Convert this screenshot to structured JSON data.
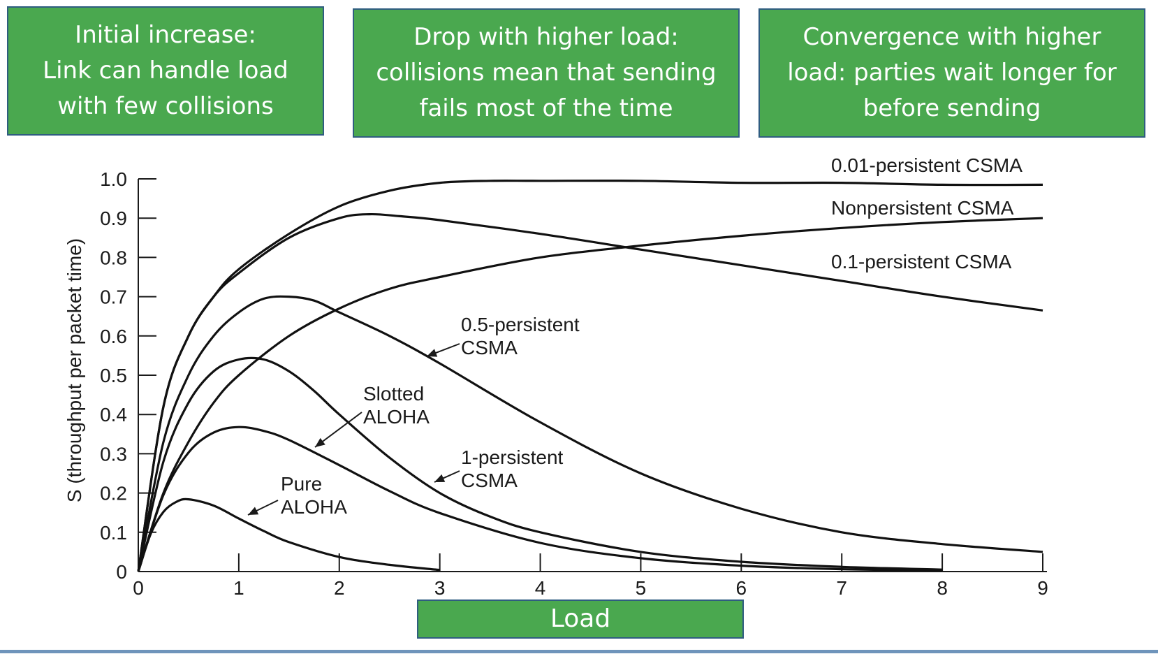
{
  "callouts": [
    {
      "lines": [
        "Initial increase:",
        "Link can handle load",
        "with few collisions"
      ]
    },
    {
      "lines": [
        "Drop with higher load:",
        "collisions mean that sending",
        "fails most of the time"
      ]
    },
    {
      "lines": [
        "Convergence with higher",
        "load: parties wait longer for",
        "before sending"
      ]
    }
  ],
  "colors": {
    "callout_bg": "#4aa84f",
    "callout_border": "#2f5d80",
    "curve": "#111111",
    "rule": "#6f94bb"
  },
  "chart_data": {
    "type": "line",
    "title": "",
    "xlabel": "Load",
    "ylabel": "S (throughput per packet time)",
    "xlim": [
      0,
      9
    ],
    "ylim": [
      0,
      1.0
    ],
    "x_ticks": [
      "0",
      "1",
      "2",
      "3",
      "4",
      "5",
      "6",
      "7",
      "8",
      "9"
    ],
    "y_ticks": [
      "0",
      "0.1",
      "0.2",
      "0.3",
      "0.4",
      "0.5",
      "0.6",
      "0.7",
      "0.8",
      "0.9",
      "1.0"
    ],
    "grid": false,
    "series": [
      {
        "name": "0.01-persistent CSMA",
        "label_lines": [
          "0.01-persistent CSMA"
        ],
        "x": [
          0,
          0.25,
          0.5,
          0.75,
          1,
          1.5,
          2,
          2.5,
          3,
          3.5,
          4,
          5,
          6,
          7,
          8,
          9
        ],
        "y": [
          0,
          0.42,
          0.6,
          0.7,
          0.77,
          0.86,
          0.93,
          0.97,
          0.99,
          0.995,
          0.995,
          0.995,
          0.99,
          0.99,
          0.985,
          0.985
        ]
      },
      {
        "name": "Nonpersistent CSMA",
        "label_lines": [
          "Nonpersistent CSMA"
        ],
        "x": [
          0,
          0.25,
          0.5,
          0.75,
          1,
          1.5,
          2,
          2.5,
          3,
          4,
          5,
          6,
          7,
          8,
          9
        ],
        "y": [
          0,
          0.2,
          0.33,
          0.43,
          0.5,
          0.6,
          0.67,
          0.72,
          0.75,
          0.8,
          0.83,
          0.855,
          0.875,
          0.89,
          0.9
        ]
      },
      {
        "name": "0.1-persistent CSMA",
        "label_lines": [
          "0.1-persistent CSMA"
        ],
        "x": [
          0,
          0.25,
          0.5,
          0.75,
          1,
          1.5,
          2,
          2.3,
          2.6,
          3,
          4,
          5,
          6,
          7,
          8,
          9
        ],
        "y": [
          0,
          0.42,
          0.6,
          0.7,
          0.76,
          0.85,
          0.9,
          0.91,
          0.905,
          0.895,
          0.86,
          0.82,
          0.78,
          0.74,
          0.7,
          0.665
        ]
      },
      {
        "name": "0.5-persistent CSMA",
        "label_lines": [
          "0.5-persistent",
          "CSMA"
        ],
        "x": [
          0,
          0.25,
          0.5,
          0.75,
          1,
          1.25,
          1.5,
          1.75,
          2,
          2.5,
          3,
          4,
          5,
          6,
          7,
          8,
          9
        ],
        "y": [
          0,
          0.33,
          0.5,
          0.6,
          0.66,
          0.695,
          0.7,
          0.69,
          0.66,
          0.6,
          0.53,
          0.38,
          0.25,
          0.16,
          0.1,
          0.07,
          0.05
        ]
      },
      {
        "name": "1-persistent CSMA",
        "label_lines": [
          "1-persistent",
          "CSMA"
        ],
        "x": [
          0,
          0.25,
          0.5,
          0.75,
          1,
          1.25,
          1.5,
          1.75,
          2,
          2.5,
          3,
          3.5,
          4,
          5,
          6,
          7,
          8
        ],
        "y": [
          0,
          0.28,
          0.43,
          0.51,
          0.54,
          0.54,
          0.51,
          0.46,
          0.4,
          0.29,
          0.2,
          0.14,
          0.1,
          0.05,
          0.025,
          0.012,
          0.005
        ]
      },
      {
        "name": "Slotted ALOHA",
        "label_lines": [
          "Slotted",
          "ALOHA"
        ],
        "x": [
          0,
          0.25,
          0.5,
          0.75,
          1,
          1.25,
          1.5,
          2,
          2.5,
          3,
          4,
          5,
          6,
          7,
          8
        ],
        "y": [
          0,
          0.195,
          0.303,
          0.354,
          0.368,
          0.358,
          0.335,
          0.271,
          0.205,
          0.149,
          0.073,
          0.034,
          0.015,
          0.006,
          0.003
        ]
      },
      {
        "name": "Pure ALOHA",
        "label_lines": [
          "Pure",
          "ALOHA"
        ],
        "x": [
          0,
          0.125,
          0.25,
          0.375,
          0.5,
          0.75,
          1,
          1.25,
          1.5,
          2,
          2.5,
          3
        ],
        "y": [
          0,
          0.097,
          0.152,
          0.177,
          0.184,
          0.168,
          0.135,
          0.103,
          0.075,
          0.037,
          0.017,
          0.004
        ]
      }
    ]
  }
}
